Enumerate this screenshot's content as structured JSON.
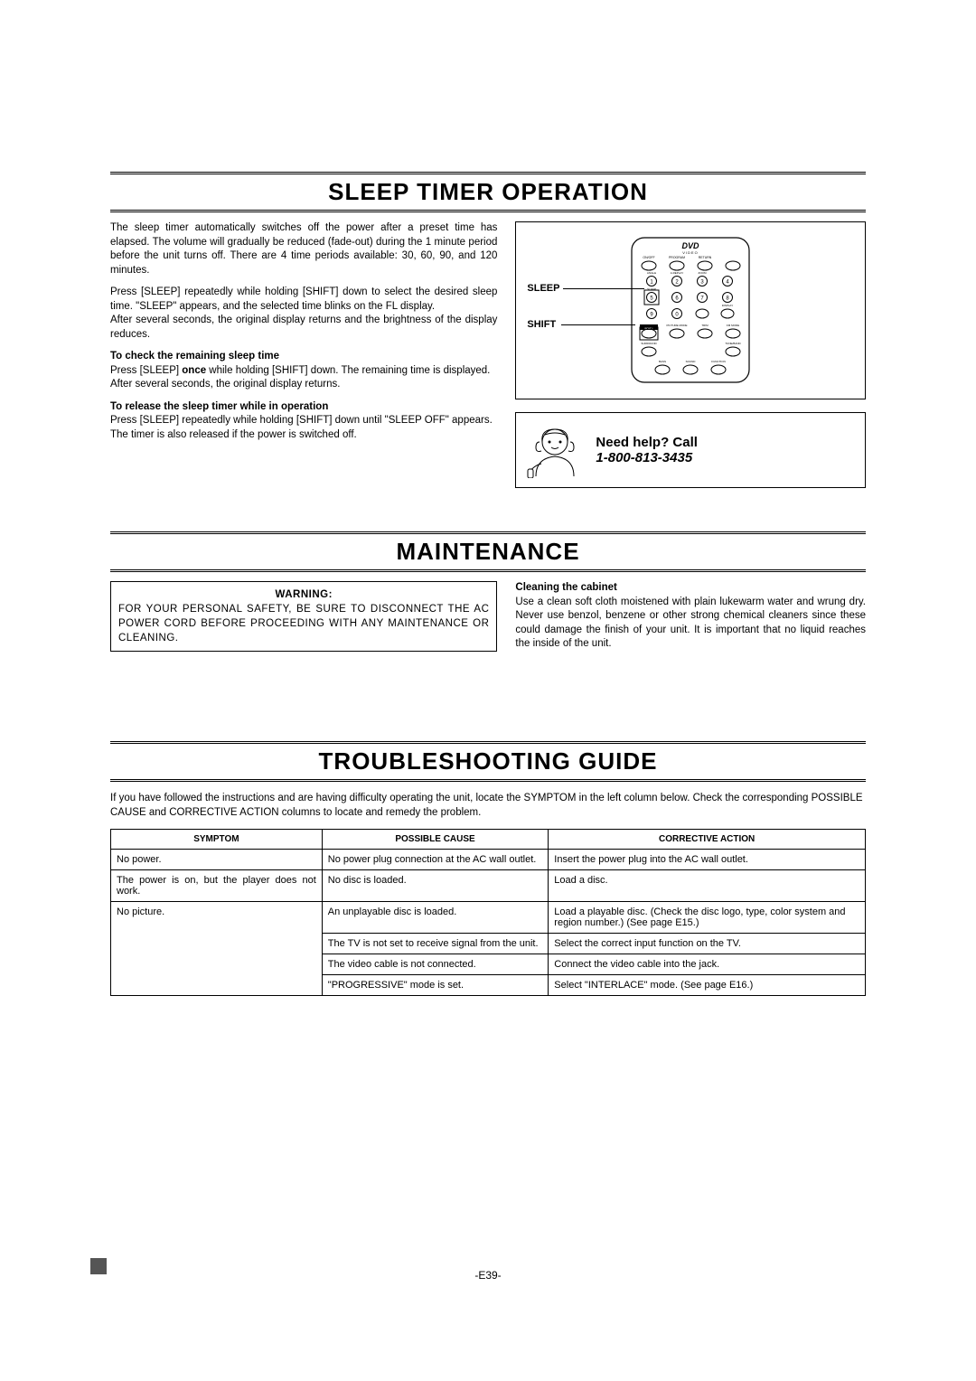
{
  "sections": {
    "sleep": {
      "title": "SLEEP TIMER OPERATION",
      "p1": "The sleep timer automatically switches off the power after a preset time has elapsed. The volume will gradually be reduced (fade-out) during the 1 minute period before the unit turns off. There are 4 time periods available: 30, 60, 90, and 120 minutes.",
      "p2": "Press [SLEEP] repeatedly while holding [SHIFT] down to select the desired sleep time. \"SLEEP\" appears, and the selected time blinks on the FL display.",
      "p3": "After several seconds, the original display returns and the brightness of the display reduces.",
      "h1": "To check the remaining sleep time",
      "p4a": "Press [SLEEP] ",
      "p4b": "once",
      "p4c": " while holding [SHIFT] down. The remaining time is displayed.",
      "p5": "After several seconds, the original display returns.",
      "h2": "To release the sleep timer while in operation",
      "p6": "Press [SLEEP] repeatedly while holding [SHIFT] down until \"SLEEP OFF\" appears.",
      "p7": "The timer is also released if the power is switched off."
    },
    "remote": {
      "label_sleep": "SLEEP",
      "label_shift": "SHIFT",
      "dvd_logo": "DVD",
      "dvd_sub": "VIDEO"
    },
    "help": {
      "title": "Need help? Call",
      "phone": "1-800-813-3435"
    },
    "maintenance": {
      "title": "MAINTENANCE",
      "warning_label": "WARNING:",
      "warning_body": "FOR YOUR PERSONAL SAFETY, BE SURE TO DISCONNECT THE AC POWER CORD BEFORE PROCEEDING WITH ANY MAINTENANCE OR CLEANING.",
      "clean_h": "Cleaning the cabinet",
      "clean_p": "Use a clean soft cloth moistened with plain lukewarm water and wrung dry. Never use benzol, benzene or other strong chemical cleaners since these could damage the finish of your unit. It is important that no liquid reaches the inside of the unit."
    },
    "troubleshoot": {
      "title": "TROUBLESHOOTING GUIDE",
      "intro": "If you have followed the instructions and are having difficulty operating the unit, locate the SYMPTOM in the left column below. Check the corresponding POSSIBLE CAUSE and CORRECTIVE ACTION columns to locate and remedy the problem.",
      "columns": [
        "SYMPTOM",
        "POSSIBLE CAUSE",
        "CORRECTIVE ACTION"
      ],
      "col_widths": [
        "28%",
        "30%",
        "42%"
      ],
      "rows": [
        {
          "symptom": "No power.",
          "cause": "No power plug connection at the AC wall outlet.",
          "action": "Insert the power plug into the AC wall outlet."
        },
        {
          "symptom": "The power is on, but the player does not work.",
          "cause": "No disc is loaded.",
          "action": "Load a disc."
        },
        {
          "symptom": "No picture.",
          "subrows": [
            {
              "cause": "An unplayable disc is loaded.",
              "action": "Load a playable disc. (Check the disc logo, type, color system and region number.) (See page E15.)"
            },
            {
              "cause": "The TV is not set to receive signal from the unit.",
              "action": "Select the correct input function on the TV."
            },
            {
              "cause": "The video cable is not connected.",
              "action": "Connect the video cable into the jack."
            },
            {
              "cause": "\"PROGRESSIVE\" mode is set.",
              "action": "Select \"INTERLACE\" mode. (See page E16.)"
            }
          ]
        }
      ]
    },
    "page_number": "-E39-"
  }
}
